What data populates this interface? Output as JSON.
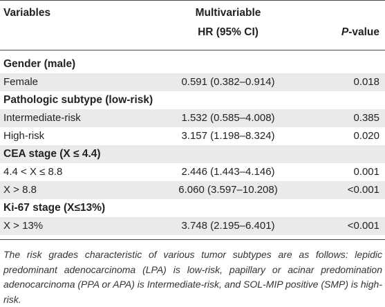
{
  "header": {
    "variables": "Variables",
    "multivariable": "Multivariable",
    "hr": "HR (95% CI)",
    "p_prefix": "P",
    "p_suffix": "-value"
  },
  "rows": [
    {
      "type": "section",
      "variable": "Gender (male)",
      "hr": "",
      "p": ""
    },
    {
      "type": "data",
      "variable": "Female",
      "hr": "0.591 (0.382–0.914)",
      "p": "0.018"
    },
    {
      "type": "section",
      "variable": "Pathologic subtype (low-risk)",
      "hr": "",
      "p": ""
    },
    {
      "type": "data",
      "variable": "Intermediate-risk",
      "hr": "1.532 (0.585–4.008)",
      "p": "0.385"
    },
    {
      "type": "data",
      "variable": "High-risk",
      "hr": "3.157 (1.198–8.324)",
      "p": "0.020"
    },
    {
      "type": "section",
      "variable": "CEA stage (X ≤ 4.4)",
      "hr": "",
      "p": ""
    },
    {
      "type": "data",
      "variable": "4.4 < X ≤ 8.8",
      "hr": "2.446 (1.443–4.146)",
      "p": "0.001"
    },
    {
      "type": "data",
      "variable": "X > 8.8",
      "hr": "6.060 (3.597–10.208)",
      "p": "<0.001"
    },
    {
      "type": "section",
      "variable": "Ki-67 stage (X≤13%)",
      "hr": "",
      "p": ""
    },
    {
      "type": "data",
      "variable": "X > 13%",
      "hr": "3.748 (2.195–6.401)",
      "p": "<0.001"
    }
  ],
  "footnote": "The risk grades characteristic of various tumor subtypes are as follows: lepidic predominant adenocarcinoma (LPA) is low-risk, papillary or acinar predomination adenocarcinoma (PPA or APA) is Intermediate-risk, and SOL-MIP positive (SMP) is high-risk.",
  "colors": {
    "shade": "#eaeaea",
    "text": "#222222",
    "rule": "#4a4a4a"
  }
}
